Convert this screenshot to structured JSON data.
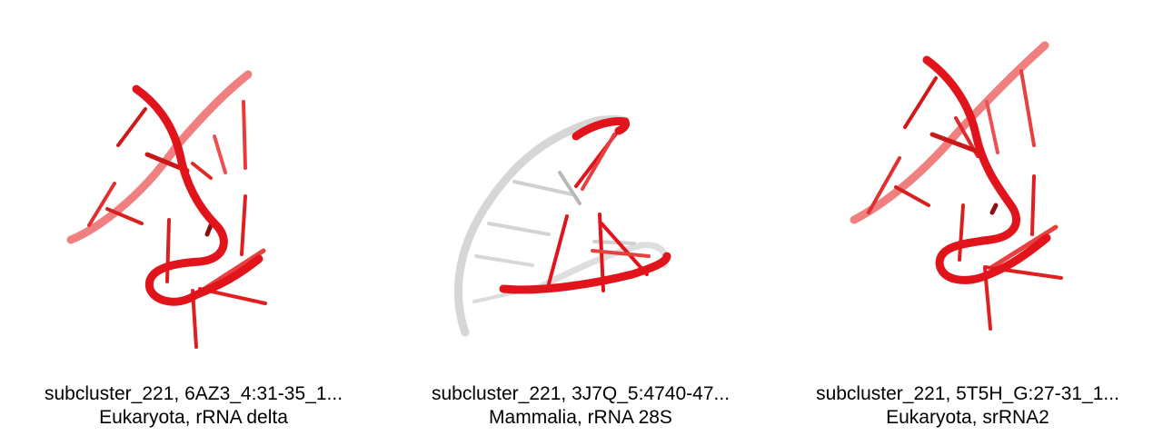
{
  "panels": [
    {
      "caption_line1": "subcluster_221, 6AZ3_4:31-35_1...",
      "caption_line2": "Eukaryota, rRNA delta",
      "structure_icon": "rna-backbone-red"
    },
    {
      "caption_line1": "subcluster_221, 3J7Q_5:4740-47...",
      "caption_line2": "Mammalia, rRNA 28S",
      "structure_icon": "rna-backbone-red-on-grey-hairpin"
    },
    {
      "caption_line1": "subcluster_221, 5T5H_G:27-31_1...",
      "caption_line2": "Eukaryota, srRNA2",
      "structure_icon": "rna-backbone-red"
    }
  ],
  "colors": {
    "highlight": "#e0141a",
    "highlight_light": "#f06a6a",
    "context": "#d0d0d0"
  }
}
